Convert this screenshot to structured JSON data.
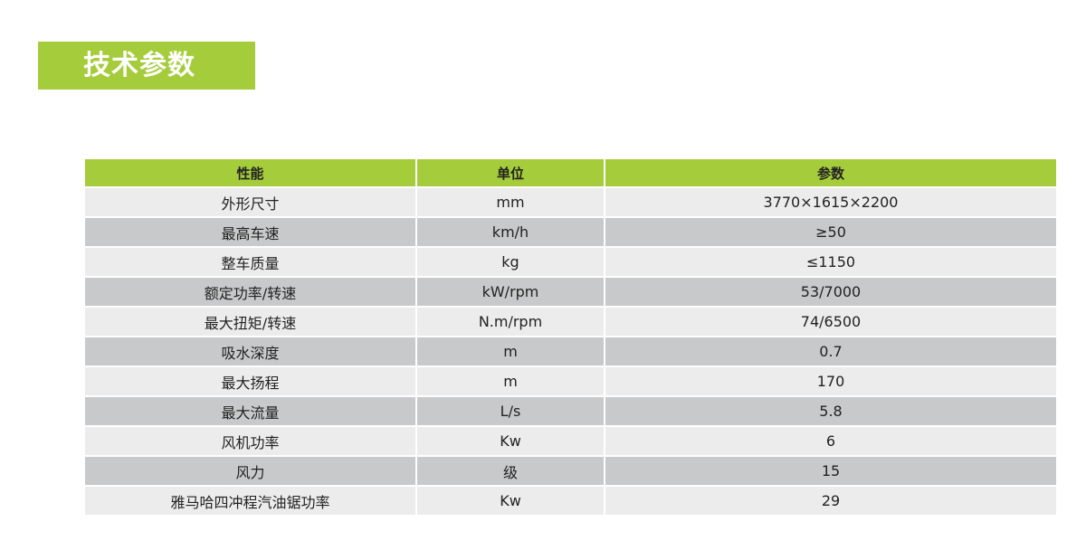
{
  "title": "技术参数",
  "colors": {
    "accent": "#a5cc3b",
    "row_light": "#ececec",
    "row_dark": "#c8c9ca"
  },
  "table": {
    "headers": [
      "性能",
      "单位",
      "参数"
    ],
    "rows": [
      [
        "外形尺寸",
        "mm",
        "3770×1615×2200"
      ],
      [
        "最高车速",
        "km/h",
        "≥50"
      ],
      [
        "整车质量",
        "kg",
        "≤1150"
      ],
      [
        "额定功率/转速",
        "kW/rpm",
        "53/7000"
      ],
      [
        "最大扭矩/转速",
        "N.m/rpm",
        "74/6500"
      ],
      [
        "吸水深度",
        "m",
        "0.7"
      ],
      [
        "最大扬程",
        "m",
        "170"
      ],
      [
        "最大流量",
        "L/s",
        "5.8"
      ],
      [
        "风机功率",
        "Kw",
        "6"
      ],
      [
        "风力",
        "级",
        "15"
      ],
      [
        "雅马哈四冲程汽油锯功率",
        "Kw",
        "29"
      ]
    ]
  }
}
